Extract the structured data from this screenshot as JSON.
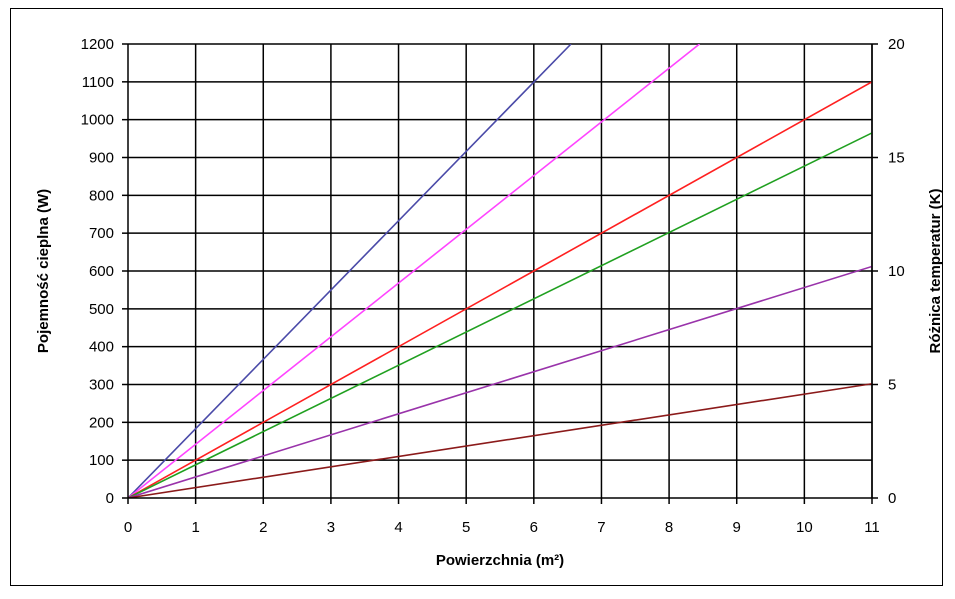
{
  "chart_data": {
    "type": "line",
    "xlabel": "Powierzchnia (m²)",
    "ylabel": "Pojemność cieplna (W)",
    "y2label": "Różnica temperatur (K)",
    "xlim": [
      0,
      11
    ],
    "ylim": [
      0,
      1200
    ],
    "y2lim": [
      0,
      20
    ],
    "x_ticks": [
      0,
      1,
      2,
      3,
      4,
      5,
      6,
      7,
      8,
      9,
      10,
      11
    ],
    "y_ticks": [
      0,
      100,
      200,
      300,
      400,
      500,
      600,
      700,
      800,
      900,
      1000,
      1100,
      1200
    ],
    "y2_ticks": [
      0,
      5,
      10,
      15,
      20
    ],
    "grid": true,
    "series": [
      {
        "color": "#4a4aa8",
        "x": [
          0,
          6.55
        ],
        "y": [
          0,
          1200
        ]
      },
      {
        "color": "#ff44ff",
        "x": [
          0,
          8.45
        ],
        "y": [
          0,
          1200
        ]
      },
      {
        "color": "#ff2020",
        "x": [
          0,
          11
        ],
        "y": [
          0,
          1100
        ]
      },
      {
        "color": "#20a020",
        "x": [
          0,
          11
        ],
        "y": [
          0,
          965
        ]
      },
      {
        "color": "#9933aa",
        "x": [
          0,
          11
        ],
        "y": [
          0,
          612
        ]
      },
      {
        "color": "#8b1a1a",
        "x": [
          0,
          11
        ],
        "y": [
          0,
          302
        ]
      }
    ]
  }
}
